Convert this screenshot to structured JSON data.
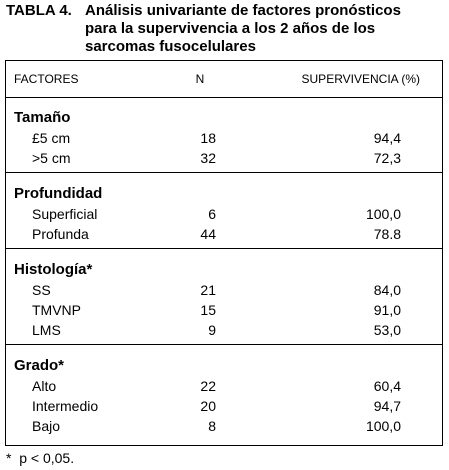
{
  "title": {
    "label": "TABLA 4.",
    "lines": [
      "Análisis univariante de factores pronósticos",
      "para la supervivencia a los 2 años de los",
      "sarcomas fusocelulares"
    ]
  },
  "table": {
    "header": [
      "FACTORES",
      "N",
      "SUPERVIVENCIA (%)"
    ],
    "groups": [
      {
        "name": "Tamaño",
        "rows": [
          [
            "£5 cm",
            "18",
            "94,4"
          ],
          [
            ">5 cm",
            "32",
            "72,3"
          ]
        ]
      },
      {
        "name": "Profundidad",
        "rows": [
          [
            "Superficial",
            "6",
            "100,0"
          ],
          [
            "Profunda",
            "44",
            "78.8"
          ]
        ]
      },
      {
        "name": "Histología*",
        "rows": [
          [
            "SS",
            "21",
            "84,0"
          ],
          [
            "TMVNP",
            "15",
            "91,0"
          ],
          [
            "LMS",
            "9",
            "53,0"
          ]
        ]
      },
      {
        "name": "Grado*",
        "rows": [
          [
            "Alto",
            "22",
            "60,4"
          ],
          [
            "Intermedio",
            "20",
            "94,7"
          ],
          [
            "Bajo",
            "8",
            "100,0"
          ]
        ]
      }
    ]
  },
  "footnote": "*  p < 0,05."
}
